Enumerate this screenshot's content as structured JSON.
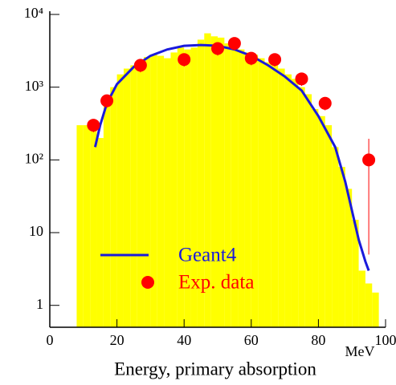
{
  "chart_data": {
    "type": "histogram",
    "xlabel": "Energy, primary absorption",
    "x_unit": "MeV",
    "xlim": [
      0,
      100
    ],
    "xticks": [
      0,
      20,
      40,
      60,
      80,
      100
    ],
    "ylim": [
      0.5,
      10000
    ],
    "log_y": true,
    "yticks": [
      1,
      10,
      {
        "value": 100,
        "label": "10²"
      },
      {
        "value": 1000,
        "label": "10³"
      },
      {
        "value": 10000,
        "label": "10⁴"
      }
    ],
    "legend": "lower-left",
    "series": [
      {
        "type": "histogram",
        "color": "#ffff00",
        "bins": [
          8,
          10,
          12,
          14,
          16,
          18,
          20,
          22,
          24,
          26,
          28,
          30,
          32,
          34,
          36,
          38,
          40,
          42,
          44,
          46,
          48,
          50,
          52,
          54,
          56,
          58,
          60,
          62,
          64,
          66,
          68,
          70,
          72,
          74,
          76,
          78,
          80,
          82,
          84,
          86,
          88,
          90,
          92,
          94,
          96,
          98
        ],
        "counts": [
          300,
          300,
          280,
          200,
          700,
          1000,
          1500,
          1800,
          2000,
          2300,
          2600,
          2800,
          2700,
          2500,
          3000,
          3500,
          3300,
          3500,
          4500,
          5500,
          5000,
          4800,
          4000,
          3800,
          3300,
          3000,
          2800,
          2500,
          2200,
          2000,
          1800,
          1500,
          1300,
          1000,
          800,
          500,
          400,
          300,
          150,
          80,
          40,
          15,
          3,
          2,
          1.5
        ]
      },
      {
        "type": "line",
        "name": "Geant4",
        "color": "#1a1adc",
        "x": [
          13.5,
          15,
          17,
          20,
          25,
          30,
          35,
          40,
          45,
          50,
          55,
          60,
          65,
          70,
          75,
          80,
          85,
          88,
          90,
          92,
          94,
          95
        ],
        "values": [
          150,
          300,
          600,
          1100,
          1900,
          2700,
          3300,
          3700,
          3800,
          3700,
          3300,
          2700,
          2000,
          1400,
          900,
          400,
          150,
          50,
          20,
          8,
          4,
          3
        ]
      },
      {
        "type": "scatter",
        "name": "Exp. data",
        "color": "#ff0000",
        "x": [
          13,
          17,
          27,
          40,
          50,
          55,
          60,
          67,
          75,
          82,
          95
        ],
        "values": [
          300,
          650,
          2000,
          2400,
          3400,
          4000,
          2500,
          2400,
          1300,
          600,
          100
        ],
        "errors": [
          60,
          130,
          400,
          480,
          680,
          800,
          500,
          480,
          260,
          120,
          95
        ]
      }
    ]
  }
}
